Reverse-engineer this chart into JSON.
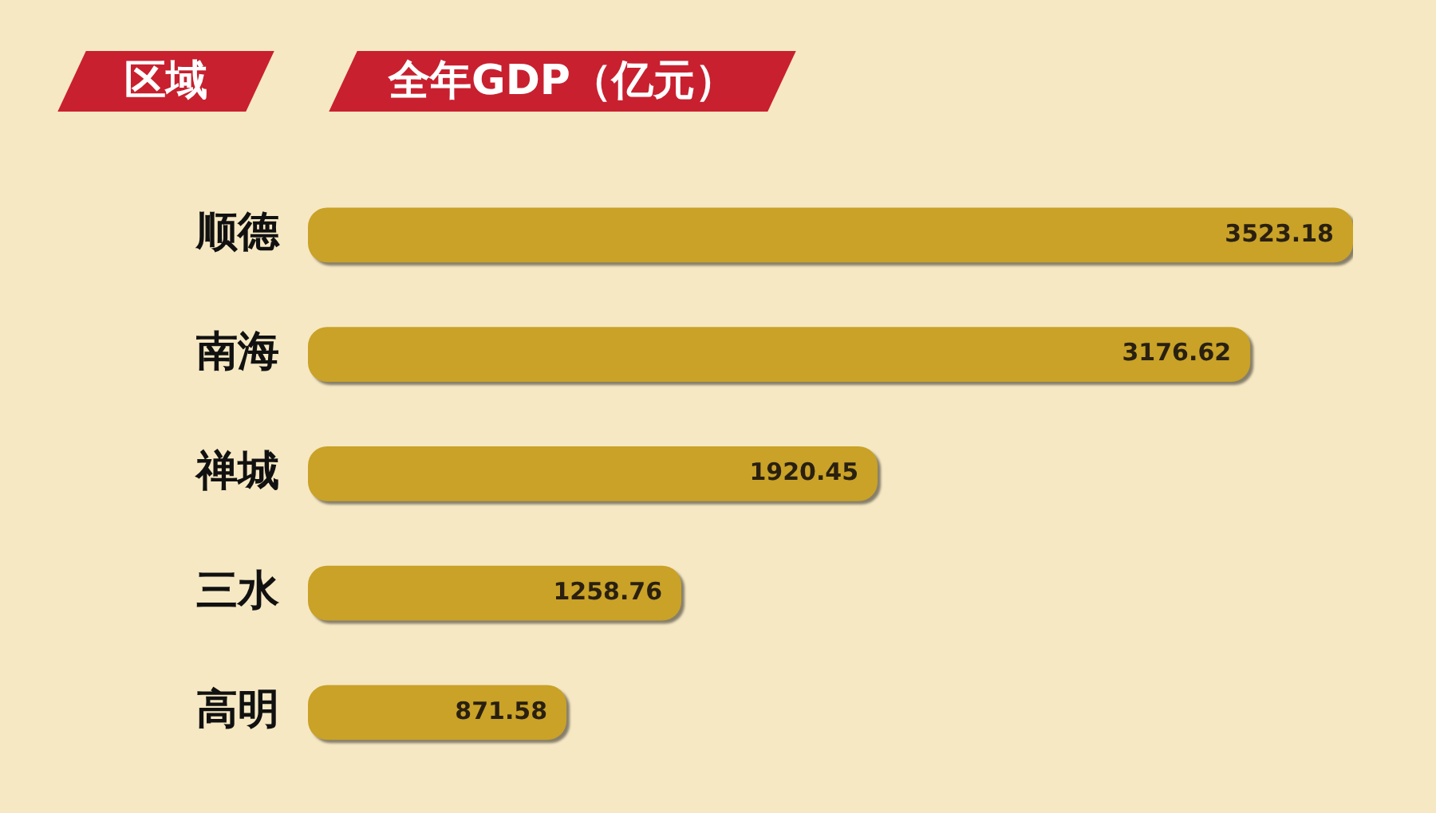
{
  "chart_data": {
    "type": "bar",
    "orientation": "horizontal",
    "ylabel": "区域",
    "xlabel": "全年GDP（亿元）",
    "categories": [
      "顺德",
      "南海",
      "禅城",
      "三水",
      "高明"
    ],
    "values": [
      3523.18,
      3176.62,
      1920.45,
      1258.76,
      871.58
    ],
    "color": "#c9a227",
    "data_labels": true,
    "legend": false,
    "tick_labels": "y"
  }
}
